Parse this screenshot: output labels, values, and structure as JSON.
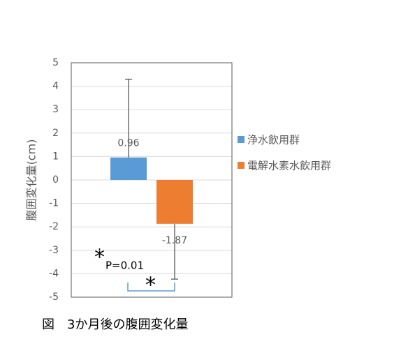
{
  "chart_data": {
    "type": "bar",
    "ylabel": "腹囲変化量(cm)",
    "caption": "図　3か月後の腹囲変化量",
    "categories": [
      null
    ],
    "series": [
      {
        "name": "浄水飲用群",
        "color": "#5b9bd5",
        "values": [
          0.96
        ],
        "errors": [
          3.34
        ]
      },
      {
        "name": "電解水素水飲用群",
        "color": "#ed7d31",
        "values": [
          -1.87
        ],
        "errors": [
          2.36
        ]
      }
    ],
    "ylim": [
      -5,
      5
    ],
    "yticks": [
      -5,
      -4,
      -3,
      -2,
      -1,
      0,
      1,
      2,
      3,
      4,
      5
    ],
    "grid": true,
    "legend": "right",
    "annotations": [
      "*",
      "P=0.01",
      "*"
    ]
  }
}
